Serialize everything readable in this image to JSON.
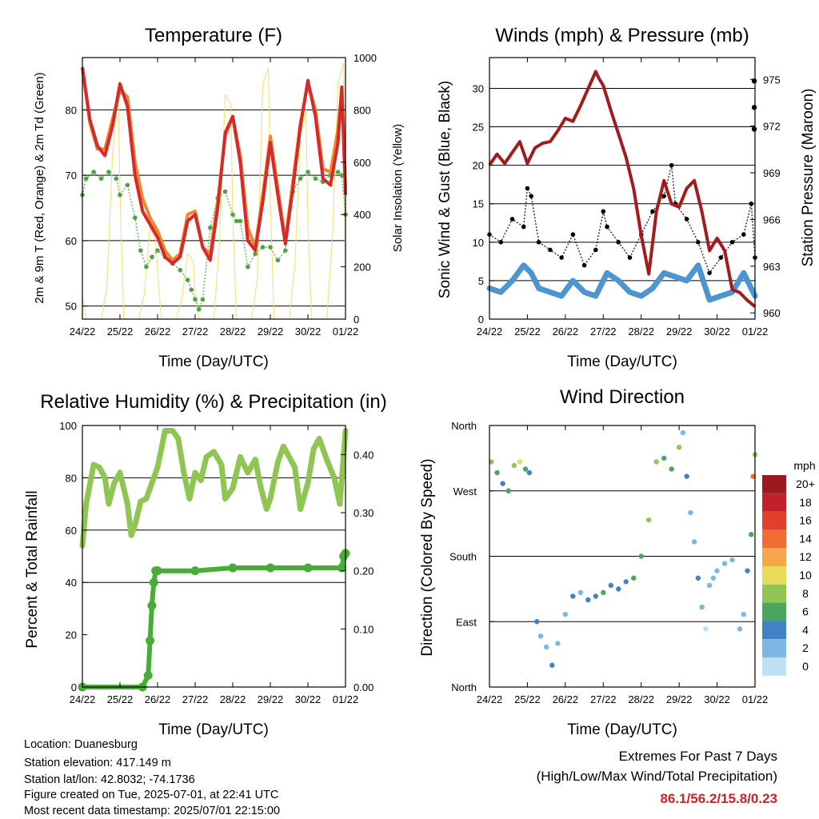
{
  "chart_data": [
    {
      "type": "line",
      "title": "Temperature (F)",
      "xlabel": "Time (Day/UTC)",
      "ylabel": "2m & 9m T (Red, Orange) & 2m Td (Green)",
      "ylabel_right": "Solar Insolation (Yellow)",
      "x_ticks": [
        "24/22",
        "25/22",
        "26/22",
        "27/22",
        "28/22",
        "29/22",
        "30/22",
        "01/22"
      ],
      "ylim": [
        48,
        88
      ],
      "y_ticks": [
        50,
        60,
        70,
        80
      ],
      "ylim_right": [
        0,
        1000
      ],
      "y_ticks_right": [
        0,
        200,
        400,
        600,
        800,
        1000
      ],
      "grid_y": [
        50,
        60,
        70,
        80
      ],
      "series": [
        {
          "key": "solar",
          "color": "#f5dc6e",
          "axis": "right",
          "style": "line",
          "x": [
            0,
            0.1,
            0.2,
            0.35,
            0.5,
            0.65,
            0.8,
            0.95,
            1.0,
            1.1,
            1.2,
            1.35,
            1.5,
            1.65,
            1.8,
            1.95,
            2.0,
            2.1,
            2.2,
            2.35,
            2.5,
            2.65,
            2.8,
            2.95,
            3.0,
            3.1,
            3.2,
            3.35,
            3.5,
            3.65,
            3.8,
            3.95,
            4.0,
            4.1,
            4.2,
            4.35,
            4.5,
            4.65,
            4.8,
            4.95,
            5.0,
            5.1,
            5.2,
            5.35,
            5.5,
            5.65,
            5.8,
            5.95,
            6.0,
            6.1,
            6.2,
            6.35,
            6.5,
            6.65,
            6.8,
            6.95,
            7.0
          ],
          "y": [
            80,
            0,
            0,
            0,
            0,
            120,
            620,
            880,
            500,
            0,
            0,
            0,
            0,
            100,
            350,
            300,
            180,
            0,
            0,
            0,
            0,
            80,
            250,
            220,
            100,
            0,
            0,
            0,
            0,
            300,
            860,
            820,
            400,
            0,
            0,
            0,
            0,
            150,
            900,
            960,
            450,
            0,
            0,
            0,
            0,
            200,
            700,
            800,
            350,
            0,
            0,
            0,
            0,
            300,
            900,
            980,
            0
          ]
        },
        {
          "key": "td",
          "color": "#4ca540",
          "axis": "left",
          "style": "dots",
          "x": [
            0,
            0.1,
            0.3,
            0.5,
            0.7,
            0.9,
            1.0,
            1.2,
            1.4,
            1.55,
            1.7,
            1.85,
            2.0,
            2.2,
            2.4,
            2.6,
            2.8,
            2.9,
            3.0,
            3.1,
            3.2,
            3.4,
            3.6,
            3.8,
            4.0,
            4.1,
            4.2,
            4.4,
            4.6,
            4.8,
            5.0,
            5.2,
            5.4,
            5.6,
            5.8,
            6.0,
            6.2,
            6.4,
            6.6,
            6.8,
            6.9,
            7.0
          ],
          "y": [
            67,
            69.5,
            70.5,
            69.5,
            70.5,
            69.5,
            67,
            68.5,
            63.5,
            58.5,
            56,
            57.5,
            58.5,
            57.5,
            56.5,
            55.5,
            54,
            52.5,
            51,
            49.5,
            51,
            62,
            66.5,
            67.5,
            64,
            63,
            63,
            56,
            58,
            59,
            59,
            57,
            58.5,
            67.5,
            69.5,
            70.5,
            69.5,
            69,
            70,
            70.5,
            70,
            64
          ]
        },
        {
          "key": "t9m",
          "color": "#f0882a",
          "axis": "left",
          "style": "line",
          "x": [
            0,
            0.2,
            0.4,
            0.6,
            0.8,
            1.0,
            1.2,
            1.4,
            1.6,
            1.8,
            2.0,
            2.2,
            2.4,
            2.6,
            2.8,
            3.0,
            3.2,
            3.4,
            3.6,
            3.8,
            4.0,
            4.2,
            4.4,
            4.6,
            4.8,
            5.0,
            5.2,
            5.4,
            5.6,
            5.8,
            6.0,
            6.2,
            6.4,
            6.6,
            6.8,
            6.9,
            7.0
          ],
          "y": [
            86.5,
            78,
            74,
            74,
            78.5,
            83,
            82,
            72,
            66.5,
            63.5,
            61.5,
            58.5,
            57,
            58,
            64,
            64.5,
            59,
            58,
            66,
            76,
            79,
            73,
            62,
            59,
            67,
            76,
            68,
            60,
            69,
            78,
            84,
            80,
            71,
            70.5,
            77,
            83,
            68
          ]
        },
        {
          "key": "t2m",
          "color": "#d62a2a",
          "axis": "left",
          "style": "line",
          "x": [
            0,
            0.2,
            0.4,
            0.6,
            0.8,
            1.0,
            1.2,
            1.4,
            1.6,
            1.8,
            2.0,
            2.2,
            2.4,
            2.6,
            2.8,
            3.0,
            3.2,
            3.4,
            3.6,
            3.8,
            4.0,
            4.2,
            4.4,
            4.6,
            4.8,
            5.0,
            5.2,
            5.4,
            5.6,
            5.8,
            6.0,
            6.2,
            6.4,
            6.6,
            6.8,
            6.9,
            7.0
          ],
          "y": [
            86.5,
            78.5,
            74.5,
            73,
            77.5,
            84,
            80.5,
            70,
            64.5,
            62.5,
            60.5,
            57.5,
            56.5,
            57.5,
            63,
            64,
            59,
            57,
            65,
            76.5,
            79,
            72,
            60,
            58.5,
            66,
            75,
            67,
            59.5,
            68,
            77.5,
            84.5,
            79,
            69.5,
            68.5,
            75,
            83.5,
            67
          ]
        }
      ]
    },
    {
      "type": "scatter",
      "title": "Winds (mph) & Pressure (mb)",
      "xlabel": "Time (Day/UTC)",
      "ylabel": "Sonic Wind & Gust (Blue, Black)",
      "ylabel_right": "Station Pressure (Maroon)",
      "x_ticks": [
        "24/22",
        "25/22",
        "26/22",
        "27/22",
        "28/22",
        "29/22",
        "30/22",
        "01/22"
      ],
      "ylim": [
        0,
        34
      ],
      "y_ticks": [
        0,
        5,
        10,
        15,
        20,
        25,
        30
      ],
      "ylim_right": [
        959.6,
        976.4
      ],
      "y_ticks_right": [
        960,
        963,
        966,
        969,
        972,
        975
      ],
      "grid_y": [
        5,
        10,
        15,
        20,
        25,
        30
      ],
      "series": [
        {
          "key": "wind",
          "color": "#4d95d0",
          "axis": "left",
          "style": "thickline",
          "x": [
            0,
            0.3,
            0.6,
            0.9,
            1.1,
            1.3,
            1.6,
            1.9,
            2.2,
            2.5,
            2.8,
            3.1,
            3.4,
            3.7,
            4.0,
            4.3,
            4.6,
            4.9,
            5.2,
            5.5,
            5.8,
            6.1,
            6.4,
            6.7,
            7.0
          ],
          "y": [
            4,
            3.5,
            5,
            7,
            6,
            4,
            3.5,
            3,
            5,
            3.5,
            3,
            6,
            5,
            3.5,
            3,
            4,
            6,
            5.5,
            5,
            7,
            2.5,
            3,
            3.5,
            6,
            3
          ]
        },
        {
          "key": "gust",
          "color": "#000000",
          "axis": "left",
          "style": "dots",
          "x": [
            0,
            0.3,
            0.6,
            0.9,
            1.0,
            1.1,
            1.3,
            1.6,
            1.9,
            2.2,
            2.5,
            2.8,
            3.0,
            3.1,
            3.4,
            3.7,
            4.0,
            4.3,
            4.6,
            4.8,
            4.9,
            5.2,
            5.5,
            5.8,
            6.1,
            6.4,
            6.7,
            6.9,
            7.0
          ],
          "y": [
            11,
            10,
            13,
            12,
            17,
            16,
            10,
            9,
            8,
            11,
            7,
            9,
            14,
            12,
            10,
            8,
            11,
            14,
            16,
            20,
            15,
            13,
            10,
            6,
            8,
            10,
            11,
            15,
            8
          ]
        },
        {
          "key": "pressure",
          "color": "#a11c1c",
          "axis": "right",
          "style": "line",
          "x": [
            0,
            0.2,
            0.4,
            0.6,
            0.8,
            1.0,
            1.2,
            1.4,
            1.6,
            1.8,
            2.0,
            2.2,
            2.4,
            2.6,
            2.8,
            2.9,
            3.0,
            3.2,
            3.4,
            3.6,
            3.8,
            4.0,
            4.2,
            4.4,
            4.6,
            4.8,
            5.0,
            5.2,
            5.4,
            5.6,
            5.8,
            6.0,
            6.2,
            6.4,
            6.6,
            6.8,
            7.0
          ],
          "y": [
            969.5,
            970.2,
            969.6,
            970.3,
            971.0,
            969.6,
            970.6,
            970.9,
            971.0,
            971.7,
            972.5,
            972.3,
            973.3,
            974.4,
            975.5,
            975.0,
            974.6,
            973.0,
            971.5,
            970.0,
            968.0,
            965.0,
            962.5,
            966.5,
            968.5,
            967.0,
            966.8,
            968.0,
            968.5,
            966.5,
            964.0,
            964.8,
            964.0,
            961.5,
            961.3,
            960.8,
            960.4
          ]
        },
        {
          "key": "pressure_recent",
          "color": "#000000",
          "axis": "right",
          "style": "points",
          "x": [
            6.98,
            6.98,
            6.98
          ],
          "y": [
            974.9,
            973.2,
            971.8
          ]
        }
      ]
    },
    {
      "type": "line",
      "title": "Relative Humidity (%) & Precipitation (in)",
      "xlabel": "Time (Day/UTC)",
      "ylabel": "Percent & Total Rainfall",
      "x_ticks": [
        "24/22",
        "25/22",
        "26/22",
        "27/22",
        "28/22",
        "29/22",
        "30/22",
        "01/22"
      ],
      "ylim": [
        0,
        100
      ],
      "y_ticks": [
        0,
        20,
        40,
        60,
        80,
        100
      ],
      "ylim_right": [
        0,
        0.45
      ],
      "y_ticks_right": [
        "0.00",
        "0.10",
        "0.20",
        "0.30",
        "0.40"
      ],
      "grid_y": [
        40,
        60,
        80
      ],
      "series": [
        {
          "key": "rh",
          "color": "#8fc653",
          "axis": "left",
          "style": "thickline",
          "x": [
            0,
            0.1,
            0.3,
            0.45,
            0.6,
            0.7,
            0.85,
            1.0,
            1.2,
            1.3,
            1.4,
            1.55,
            1.7,
            1.85,
            2.0,
            2.2,
            2.4,
            2.55,
            2.7,
            2.85,
            3.0,
            3.15,
            3.3,
            3.5,
            3.7,
            3.8,
            4.0,
            4.2,
            4.4,
            4.6,
            4.75,
            4.9,
            5.0,
            5.2,
            5.35,
            5.5,
            5.65,
            5.8,
            6.0,
            6.15,
            6.3,
            6.5,
            6.7,
            6.85,
            7.0
          ],
          "y": [
            54,
            70,
            85,
            84,
            80,
            70,
            78,
            82,
            70,
            58,
            62,
            71,
            72,
            78,
            84,
            98,
            98,
            95,
            82,
            72,
            82,
            79,
            88,
            90,
            85,
            72,
            76,
            88,
            82,
            87,
            76,
            68,
            72,
            86,
            92,
            88,
            84,
            68,
            78,
            91,
            95,
            87,
            80,
            70,
            98
          ]
        },
        {
          "key": "precip",
          "color": "#47ad36",
          "axis": "right",
          "style": "stepdots",
          "x": [
            0,
            1.6,
            1.75,
            1.8,
            1.85,
            1.9,
            1.95,
            2.0,
            3.0,
            4.0,
            5.0,
            6.0,
            6.9,
            6.95,
            7.0
          ],
          "y": [
            0,
            0,
            0.02,
            0.08,
            0.14,
            0.18,
            0.2,
            0.2,
            0.2,
            0.205,
            0.205,
            0.205,
            0.205,
            0.225,
            0.23
          ]
        }
      ]
    },
    {
      "type": "scatter",
      "title": "Wind Direction",
      "xlabel": "Time (Day/UTC)",
      "ylabel": "Direction (Colored By Speed)",
      "x_ticks": [
        "24/22",
        "25/22",
        "26/22",
        "27/22",
        "28/22",
        "29/22",
        "30/22",
        "01/22"
      ],
      "ylim": [
        0,
        360
      ],
      "y_ticks": [
        "North",
        "East",
        "South",
        "West",
        "North"
      ],
      "grid_y": [
        90,
        180,
        270
      ],
      "legend": {
        "title": "mph",
        "labels": [
          "20+",
          "18",
          "16",
          "14",
          "12",
          "10",
          "8",
          "6",
          "4",
          "2",
          "0"
        ],
        "colors": [
          "#9c1a1d",
          "#c4202a",
          "#e1402d",
          "#f06c32",
          "#f6a74c",
          "#e8dc58",
          "#8fc653",
          "#4aa55e",
          "#4282c4",
          "#7cb6e3",
          "#bde0f6"
        ]
      },
      "series": [
        {
          "key": "direction",
          "style": "points",
          "x": [
            0.05,
            0.2,
            0.35,
            0.5,
            0.65,
            0.8,
            0.95,
            1.05,
            1.25,
            1.35,
            1.5,
            1.65,
            1.8,
            2.0,
            2.2,
            2.4,
            2.6,
            2.8,
            3.0,
            3.2,
            3.4,
            3.6,
            3.8,
            4.0,
            4.2,
            4.4,
            4.6,
            4.8,
            5.0,
            5.1,
            5.2,
            5.3,
            5.4,
            5.5,
            5.6,
            5.7,
            5.8,
            5.9,
            6.0,
            6.2,
            6.4,
            6.6,
            6.7,
            6.8,
            6.9,
            6.95,
            7.0
          ],
          "y": [
            310,
            295,
            280,
            270,
            305,
            310,
            300,
            295,
            90,
            70,
            55,
            30,
            60,
            100,
            125,
            130,
            120,
            125,
            130,
            140,
            135,
            145,
            150,
            180,
            230,
            310,
            315,
            300,
            330,
            350,
            290,
            240,
            200,
            150,
            110,
            80,
            140,
            150,
            160,
            170,
            175,
            80,
            100,
            160,
            210,
            290,
            320
          ],
          "speed": [
            8,
            6,
            4,
            6,
            8,
            10,
            6,
            4,
            4,
            2,
            2,
            4,
            2,
            2,
            4,
            2,
            4,
            4,
            6,
            4,
            4,
            4,
            6,
            6,
            8,
            8,
            6,
            6,
            8,
            2,
            4,
            2,
            2,
            4,
            2,
            0,
            2,
            2,
            2,
            2,
            2,
            2,
            2,
            4,
            6,
            14,
            8
          ]
        }
      ]
    }
  ],
  "info": {
    "location": "Location: Duanesburg",
    "elevation": "Station elevation: 417.149 m",
    "latlon": "Station lat/lon: 42.8032; -74.1736",
    "created": "Figure created on Tue, 2025-07-01, at 22:41 UTC",
    "recent": "Most recent data timestamp: 2025/07/01 22:15:00"
  },
  "extremes": {
    "line1": "Extremes For Past 7 Days",
    "line2": "(High/Low/Max Wind/Total Precipitation)",
    "values": "86.1/56.2/15.8/0.23"
  }
}
